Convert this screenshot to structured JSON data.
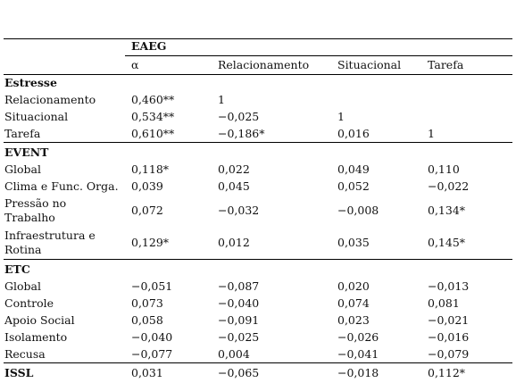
{
  "table": {
    "header": "EAEG",
    "columns": [
      "α",
      "Relacionamento",
      "Situacional",
      "Tarefa"
    ],
    "sections": [
      {
        "title": "Estresse",
        "rows": [
          {
            "label": "Relacionamento",
            "cells": [
              "0,460**",
              "1"
            ]
          },
          {
            "label": "Situacional",
            "cells": [
              "0,534**",
              "−0,025",
              "1"
            ]
          },
          {
            "label": "Tarefa",
            "cells": [
              "0,610**",
              "−0,186*",
              "0,016",
              "1"
            ]
          }
        ]
      },
      {
        "title": "EVENT",
        "rows": [
          {
            "label": "Global",
            "cells": [
              "0,118*",
              "0,022",
              "0,049",
              "0,110"
            ]
          },
          {
            "label": "Clima e Func. Orga.",
            "cells": [
              "0,039",
              "0,045",
              "0,052",
              "−0,022"
            ]
          },
          {
            "label": "Pressão no\nTrabalho",
            "cells": [
              "0,072",
              "−0,032",
              "−0,008",
              "0,134*"
            ]
          },
          {
            "label": "Infraestrutura e\nRotina",
            "cells": [
              "0,129*",
              "0,012",
              "0,035",
              "0,145*"
            ]
          }
        ]
      },
      {
        "title": "ETC",
        "rows": [
          {
            "label": "Global",
            "cells": [
              "−0,051",
              "−0,087",
              "0,020",
              "−0,013"
            ]
          },
          {
            "label": "Controle",
            "cells": [
              "0,073",
              "−0,040",
              "0,074",
              "0,081"
            ]
          },
          {
            "label": "Apoio Social",
            "cells": [
              "0,058",
              "−0,091",
              "0,023",
              "−0,021"
            ]
          },
          {
            "label": "Isolamento",
            "cells": [
              "−0,040",
              "−0,025",
              "−0,026",
              "−0,016"
            ]
          },
          {
            "label": "Recusa",
            "cells": [
              "−0,077",
              "0,004",
              "−0,041",
              "−0,079"
            ]
          }
        ]
      },
      {
        "title": "ISSL",
        "cells": [
          "0,031",
          "−0,065",
          "−0,018",
          "0,112*"
        ]
      }
    ]
  }
}
